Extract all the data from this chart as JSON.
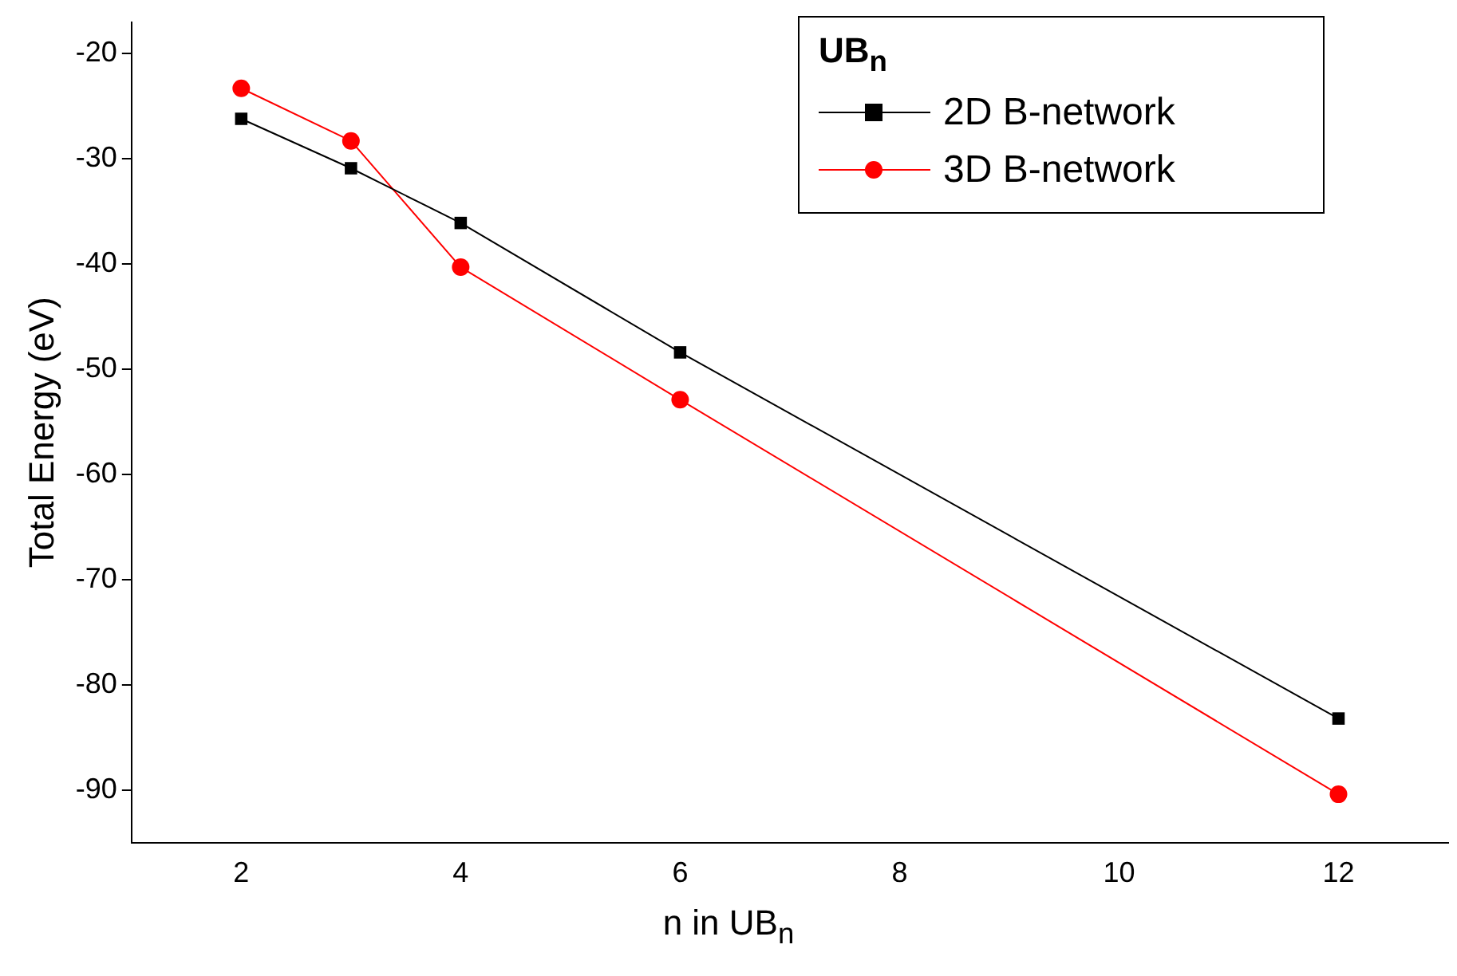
{
  "chart_data": {
    "type": "line",
    "xlabel": "n in UB$_{n}$",
    "ylabel": "Total Energy (eV)",
    "legend_title": "UB$_{n}$",
    "legend": "top right",
    "grid": false,
    "line_style": "solid",
    "x": [
      2,
      3,
      4,
      6,
      12
    ],
    "xlim": [
      1,
      13
    ],
    "xticks": [
      2,
      4,
      6,
      8,
      10,
      12
    ],
    "ylim": [
      -95,
      -17
    ],
    "yticks": [
      -90,
      -80,
      -70,
      -60,
      -50,
      -40,
      -30,
      -20
    ],
    "series": [
      {
        "name": "2D B-network",
        "color": "#000000",
        "marker": "square",
        "values": [
          -26.2,
          -30.9,
          -36.1,
          -48.4,
          -83.2
        ]
      },
      {
        "name": "3D B-network",
        "color": "#ff0000",
        "marker": "circle",
        "values": [
          -23.3,
          -28.3,
          -40.3,
          -52.9,
          -90.4
        ]
      }
    ]
  }
}
